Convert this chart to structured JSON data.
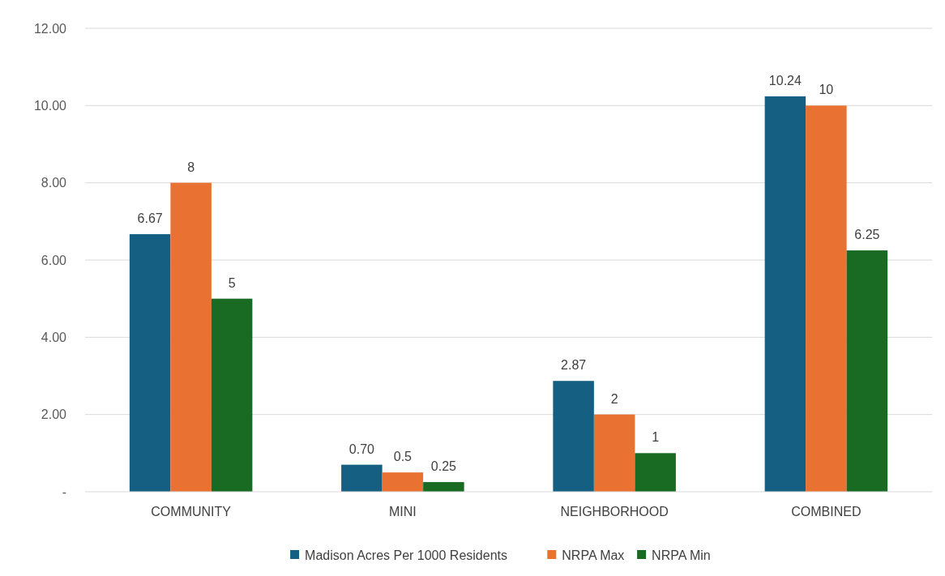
{
  "chart_data": {
    "type": "bar",
    "categories": [
      "COMMUNITY",
      "MINI",
      "NEIGHBORHOOD",
      "COMBINED"
    ],
    "series": [
      {
        "name": "Madison Acres Per 1000 Residents",
        "color": "#156082",
        "values": [
          6.67,
          0.7,
          2.87,
          10.24
        ],
        "value_labels": [
          "6.67",
          "0.70",
          "2.87",
          "10.24"
        ]
      },
      {
        "name": "NRPA Max",
        "color": "#e97132",
        "values": [
          8,
          0.5,
          2,
          10
        ],
        "value_labels": [
          "8",
          "0.5",
          "2",
          "10"
        ]
      },
      {
        "name": "NRPA Min",
        "color": "#196b24",
        "values": [
          5,
          0.25,
          1,
          6.25
        ],
        "value_labels": [
          "5",
          "0.25",
          "1",
          "6.25"
        ]
      }
    ],
    "ylim": [
      0,
      12
    ],
    "yticks": [
      {
        "value": 0,
        "label": "-"
      },
      {
        "value": 2,
        "label": "2.00"
      },
      {
        "value": 4,
        "label": "4.00"
      },
      {
        "value": 6,
        "label": "6.00"
      },
      {
        "value": 8,
        "label": "8.00"
      },
      {
        "value": 10,
        "label": "10.00"
      },
      {
        "value": 12,
        "label": "12.00"
      }
    ],
    "grid": "y",
    "legend": "bottom"
  }
}
